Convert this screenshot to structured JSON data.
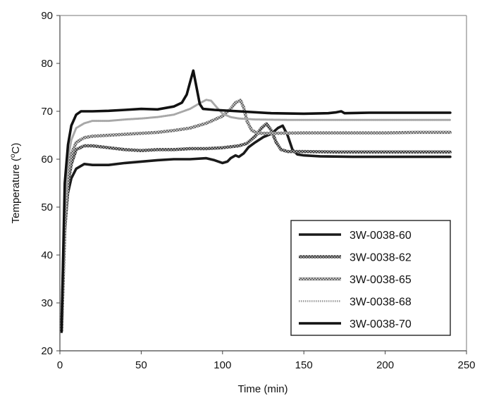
{
  "chart_data": {
    "type": "line",
    "title": "",
    "xlabel": "Time (min)",
    "ylabel_main": "Temperature (",
    "ylabel_sup": "o",
    "ylabel_end": "C)",
    "xlim": [
      0,
      250
    ],
    "ylim": [
      20,
      90
    ],
    "x_ticks": [
      "0",
      "50",
      "100",
      "150",
      "200",
      "250"
    ],
    "y_ticks": [
      "20",
      "30",
      "40",
      "50",
      "60",
      "70",
      "80",
      "90"
    ],
    "grid": false,
    "legend_position": "bottom-right",
    "series": [
      {
        "name": "3W-0038-60",
        "color": "#1a1a1a",
        "style": "solid",
        "points": [
          [
            1,
            24
          ],
          [
            3,
            45
          ],
          [
            5,
            53
          ],
          [
            7,
            56
          ],
          [
            10,
            58
          ],
          [
            15,
            59
          ],
          [
            20,
            58.8
          ],
          [
            30,
            58.8
          ],
          [
            40,
            59.2
          ],
          [
            50,
            59.5
          ],
          [
            60,
            59.8
          ],
          [
            70,
            60
          ],
          [
            80,
            60
          ],
          [
            90,
            60.2
          ],
          [
            95,
            59.8
          ],
          [
            100,
            59.2
          ],
          [
            103,
            59.5
          ],
          [
            105,
            60.2
          ],
          [
            108,
            60.8
          ],
          [
            110,
            60.5
          ],
          [
            113,
            61.2
          ],
          [
            116,
            62.5
          ],
          [
            120,
            63.5
          ],
          [
            125,
            64.6
          ],
          [
            130,
            65.3
          ],
          [
            134,
            66.5
          ],
          [
            137,
            67
          ],
          [
            140,
            65
          ],
          [
            143,
            62
          ],
          [
            146,
            61
          ],
          [
            150,
            60.8
          ],
          [
            160,
            60.6
          ],
          [
            180,
            60.5
          ],
          [
            200,
            60.5
          ],
          [
            220,
            60.5
          ],
          [
            240,
            60.5
          ]
        ]
      },
      {
        "name": "3W-0038-62",
        "color": "#5a5a5a",
        "style": "dense-hatch",
        "points": [
          [
            1,
            24
          ],
          [
            3,
            45
          ],
          [
            5,
            55
          ],
          [
            7,
            59
          ],
          [
            10,
            62
          ],
          [
            15,
            62.8
          ],
          [
            20,
            62.8
          ],
          [
            30,
            62.4
          ],
          [
            40,
            62
          ],
          [
            50,
            61.8
          ],
          [
            60,
            62
          ],
          [
            70,
            62
          ],
          [
            80,
            62.2
          ],
          [
            90,
            62.2
          ],
          [
            100,
            62.4
          ],
          [
            110,
            62.8
          ],
          [
            115,
            63.3
          ],
          [
            120,
            64.8
          ],
          [
            124,
            66.5
          ],
          [
            127,
            67.4
          ],
          [
            130,
            66
          ],
          [
            133,
            63.5
          ],
          [
            136,
            62
          ],
          [
            140,
            61.6
          ],
          [
            150,
            61.6
          ],
          [
            170,
            61.5
          ],
          [
            200,
            61.5
          ],
          [
            220,
            61.5
          ],
          [
            240,
            61.5
          ]
        ]
      },
      {
        "name": "3W-0038-65",
        "color": "#777777",
        "style": "hatch",
        "points": [
          [
            1,
            24
          ],
          [
            3,
            48
          ],
          [
            5,
            57
          ],
          [
            7,
            61
          ],
          [
            10,
            63.5
          ],
          [
            15,
            64.5
          ],
          [
            20,
            64.8
          ],
          [
            30,
            65
          ],
          [
            40,
            65.2
          ],
          [
            50,
            65.4
          ],
          [
            60,
            65.6
          ],
          [
            70,
            66
          ],
          [
            80,
            66.5
          ],
          [
            90,
            67.5
          ],
          [
            100,
            69
          ],
          [
            105,
            70.5
          ],
          [
            108,
            71.8
          ],
          [
            111,
            72.3
          ],
          [
            113,
            70.8
          ],
          [
            115,
            68
          ],
          [
            118,
            66
          ],
          [
            122,
            65.4
          ],
          [
            130,
            65.4
          ],
          [
            150,
            65.5
          ],
          [
            170,
            65.5
          ],
          [
            200,
            65.5
          ],
          [
            220,
            65.6
          ],
          [
            240,
            65.6
          ]
        ]
      },
      {
        "name": "3W-0038-68",
        "color": "#a8a8a8",
        "style": "dotted",
        "points": [
          [
            1,
            24
          ],
          [
            3,
            50
          ],
          [
            5,
            60
          ],
          [
            7,
            64
          ],
          [
            10,
            66.5
          ],
          [
            15,
            67.5
          ],
          [
            20,
            68
          ],
          [
            30,
            68
          ],
          [
            40,
            68.3
          ],
          [
            50,
            68.5
          ],
          [
            60,
            68.8
          ],
          [
            70,
            69.3
          ],
          [
            80,
            70.5
          ],
          [
            85,
            71.5
          ],
          [
            90,
            72.4
          ],
          [
            93,
            72.2
          ],
          [
            96,
            71
          ],
          [
            100,
            69.5
          ],
          [
            105,
            68.8
          ],
          [
            110,
            68.5
          ],
          [
            120,
            68.3
          ],
          [
            140,
            68.2
          ],
          [
            160,
            68.2
          ],
          [
            180,
            68.2
          ],
          [
            200,
            68.2
          ],
          [
            220,
            68.2
          ],
          [
            240,
            68.2
          ]
        ]
      },
      {
        "name": "3W-0038-70",
        "color": "#111111",
        "style": "solid",
        "points": [
          [
            1,
            24
          ],
          [
            3,
            55
          ],
          [
            5,
            63
          ],
          [
            7,
            67
          ],
          [
            10,
            69.3
          ],
          [
            13,
            70
          ],
          [
            20,
            70
          ],
          [
            30,
            70.1
          ],
          [
            40,
            70.3
          ],
          [
            50,
            70.5
          ],
          [
            60,
            70.4
          ],
          [
            70,
            71
          ],
          [
            75,
            71.8
          ],
          [
            78,
            73.5
          ],
          [
            80,
            76
          ],
          [
            82,
            78.5
          ],
          [
            84,
            75
          ],
          [
            86,
            71.5
          ],
          [
            88,
            70.5
          ],
          [
            95,
            70.3
          ],
          [
            110,
            70
          ],
          [
            130,
            69.6
          ],
          [
            150,
            69.5
          ],
          [
            165,
            69.6
          ],
          [
            170,
            69.8
          ],
          [
            173,
            70
          ],
          [
            175,
            69.6
          ],
          [
            190,
            69.7
          ],
          [
            210,
            69.7
          ],
          [
            240,
            69.7
          ]
        ]
      }
    ]
  }
}
